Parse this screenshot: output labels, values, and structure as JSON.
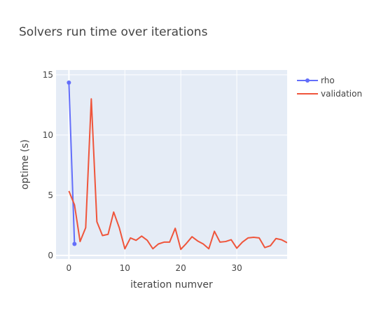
{
  "chart_data": {
    "type": "line",
    "title": "Solvers run time over iterations",
    "xlabel": "iteration numver",
    "ylabel": "optime (s)",
    "xlim": [
      -2.3,
      39
    ],
    "ylim": [
      -0.3,
      15.4
    ],
    "x_ticks": [
      0,
      10,
      20,
      30
    ],
    "y_ticks": [
      0,
      5,
      10,
      15
    ],
    "grid": true,
    "legend": "right",
    "series": [
      {
        "name": "rho",
        "color": "#636efa",
        "mode": "lines+markers",
        "x": [
          0,
          1
        ],
        "y": [
          14.35,
          0.95
        ]
      },
      {
        "name": "validation",
        "color": "#ef553b",
        "mode": "lines",
        "x": [
          0,
          1,
          2,
          3,
          4,
          5,
          6,
          7,
          8,
          9,
          10,
          11,
          12,
          13,
          14,
          15,
          16,
          17,
          18,
          19,
          20,
          21,
          22,
          23,
          24,
          25,
          26,
          27,
          28,
          29,
          30,
          31,
          32,
          33,
          34,
          35,
          36,
          37,
          38,
          39
        ],
        "y": [
          5.35,
          4.2,
          1.15,
          2.3,
          13.0,
          2.8,
          1.65,
          1.75,
          3.6,
          2.3,
          0.55,
          1.45,
          1.25,
          1.6,
          1.25,
          0.55,
          0.95,
          1.1,
          1.1,
          2.25,
          0.5,
          1.0,
          1.55,
          1.2,
          0.95,
          0.55,
          2.0,
          1.1,
          1.15,
          1.3,
          0.6,
          1.1,
          1.45,
          1.5,
          1.45,
          0.65,
          0.8,
          1.4,
          1.3,
          1.05
        ]
      }
    ]
  }
}
